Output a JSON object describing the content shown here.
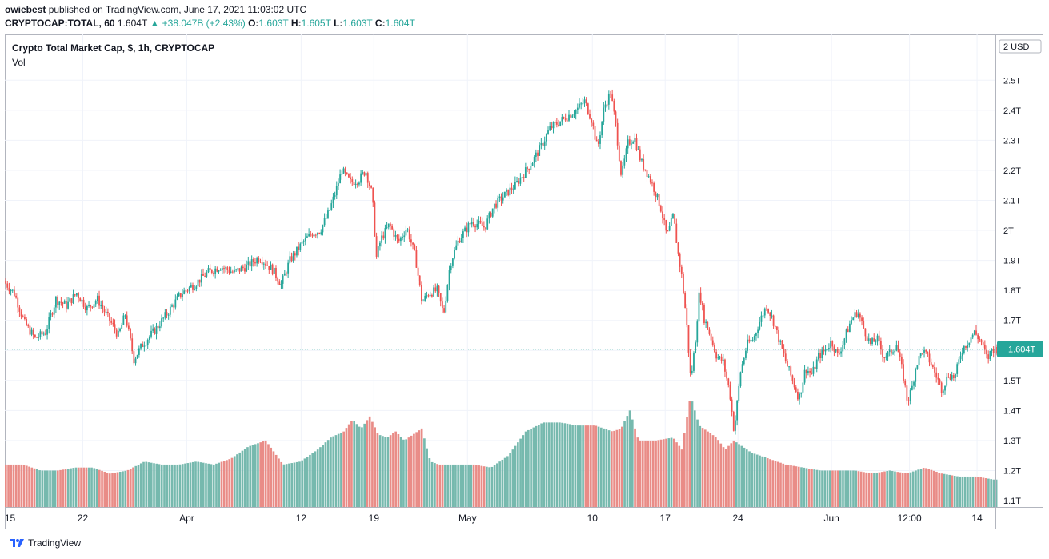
{
  "header": {
    "author": "owiebest",
    "published_text": "published on TradingView.com, June 17, 2021 11:03:02 UTC",
    "symbol": "CRYPTOCAP:TOTAL, 60",
    "last": "1.604T",
    "change": "▲ +38.047B (+2.43%)",
    "o_label": "O:",
    "o": "1.603T",
    "h_label": "H:",
    "h": "1.605T",
    "l_label": "L:",
    "l": "1.603T",
    "c_label": "C:",
    "c": "1.604T"
  },
  "legend": {
    "title": "Crypto Total Market Cap, $, 1h, CRYPTOCAP",
    "volume": "Vol"
  },
  "brand": {
    "name": "TradingView",
    "icon": "tradingview-logo-icon"
  },
  "colors": {
    "up": "#26a69a",
    "down": "#ef5350",
    "vol_up": "#76b9ae",
    "vol_down": "#e98c87",
    "grid": "#f0f3fa",
    "last_price_bg": "#26a69a"
  },
  "chart_data": {
    "type": "candlestick",
    "currency_label": "2 USD",
    "y_ticks": [
      "1.1T",
      "1.2T",
      "1.3T",
      "1.4T",
      "1.5T",
      "1.6T",
      "1.7T",
      "1.8T",
      "1.9T",
      "2T",
      "2.1T",
      "2.2T",
      "2.3T",
      "2.4T",
      "2.5T"
    ],
    "ylim": [
      1.07,
      2.62
    ],
    "x_ticks": [
      "15",
      "22",
      "Apr",
      "12",
      "19",
      "May",
      "10",
      "17",
      "24",
      "Jun",
      "12:00",
      "14"
    ],
    "x_tick_hours": [
      12,
      180,
      420,
      684,
      852,
      1068,
      1356,
      1524,
      1692,
      1908,
      2088,
      2244
    ],
    "last_price_label": "1.604T",
    "last_price": 1.604,
    "grid": true,
    "price_path": [
      [
        0,
        1.83
      ],
      [
        24,
        1.79
      ],
      [
        48,
        1.69
      ],
      [
        72,
        1.64
      ],
      [
        96,
        1.66
      ],
      [
        120,
        1.77
      ],
      [
        144,
        1.75
      ],
      [
        168,
        1.79
      ],
      [
        192,
        1.74
      ],
      [
        216,
        1.77
      ],
      [
        240,
        1.71
      ],
      [
        264,
        1.65
      ],
      [
        280,
        1.72
      ],
      [
        300,
        1.57
      ],
      [
        320,
        1.62
      ],
      [
        350,
        1.67
      ],
      [
        380,
        1.73
      ],
      [
        410,
        1.79
      ],
      [
        440,
        1.82
      ],
      [
        470,
        1.86
      ],
      [
        500,
        1.88
      ],
      [
        530,
        1.86
      ],
      [
        560,
        1.88
      ],
      [
        590,
        1.91
      ],
      [
        620,
        1.87
      ],
      [
        640,
        1.82
      ],
      [
        660,
        1.9
      ],
      [
        690,
        1.96
      ],
      [
        710,
        1.99
      ],
      [
        730,
        2.0
      ],
      [
        750,
        2.06
      ],
      [
        766,
        2.13
      ],
      [
        780,
        2.2
      ],
      [
        800,
        2.16
      ],
      [
        820,
        2.17
      ],
      [
        835,
        2.2
      ],
      [
        850,
        2.12
      ],
      [
        860,
        1.91
      ],
      [
        870,
        1.97
      ],
      [
        890,
        2.02
      ],
      [
        910,
        1.96
      ],
      [
        930,
        2.01
      ],
      [
        950,
        1.91
      ],
      [
        965,
        1.76
      ],
      [
        980,
        1.79
      ],
      [
        1000,
        1.8
      ],
      [
        1015,
        1.72
      ],
      [
        1030,
        1.89
      ],
      [
        1050,
        1.97
      ],
      [
        1080,
        2.03
      ],
      [
        1110,
        2.01
      ],
      [
        1130,
        2.08
      ],
      [
        1150,
        2.11
      ],
      [
        1180,
        2.15
      ],
      [
        1200,
        2.19
      ],
      [
        1220,
        2.23
      ],
      [
        1240,
        2.28
      ],
      [
        1260,
        2.34
      ],
      [
        1280,
        2.36
      ],
      [
        1300,
        2.38
      ],
      [
        1320,
        2.4
      ],
      [
        1340,
        2.43
      ],
      [
        1356,
        2.37
      ],
      [
        1370,
        2.27
      ],
      [
        1385,
        2.41
      ],
      [
        1400,
        2.46
      ],
      [
        1412,
        2.35
      ],
      [
        1425,
        2.18
      ],
      [
        1440,
        2.29
      ],
      [
        1455,
        2.31
      ],
      [
        1470,
        2.23
      ],
      [
        1485,
        2.19
      ],
      [
        1500,
        2.14
      ],
      [
        1515,
        2.08
      ],
      [
        1530,
        1.98
      ],
      [
        1545,
        2.05
      ],
      [
        1555,
        1.93
      ],
      [
        1565,
        1.84
      ],
      [
        1575,
        1.7
      ],
      [
        1585,
        1.5
      ],
      [
        1595,
        1.62
      ],
      [
        1605,
        1.8
      ],
      [
        1615,
        1.71
      ],
      [
        1630,
        1.65
      ],
      [
        1645,
        1.58
      ],
      [
        1660,
        1.56
      ],
      [
        1675,
        1.46
      ],
      [
        1685,
        1.33
      ],
      [
        1700,
        1.53
      ],
      [
        1715,
        1.62
      ],
      [
        1730,
        1.64
      ],
      [
        1745,
        1.7
      ],
      [
        1760,
        1.75
      ],
      [
        1775,
        1.7
      ],
      [
        1790,
        1.63
      ],
      [
        1805,
        1.56
      ],
      [
        1820,
        1.5
      ],
      [
        1835,
        1.44
      ],
      [
        1850,
        1.54
      ],
      [
        1865,
        1.52
      ],
      [
        1880,
        1.58
      ],
      [
        1895,
        1.6
      ],
      [
        1910,
        1.63
      ],
      [
        1925,
        1.58
      ],
      [
        1940,
        1.64
      ],
      [
        1955,
        1.7
      ],
      [
        1970,
        1.73
      ],
      [
        1985,
        1.67
      ],
      [
        2000,
        1.62
      ],
      [
        2015,
        1.64
      ],
      [
        2030,
        1.58
      ],
      [
        2045,
        1.59
      ],
      [
        2060,
        1.62
      ],
      [
        2075,
        1.52
      ],
      [
        2085,
        1.43
      ],
      [
        2095,
        1.47
      ],
      [
        2105,
        1.55
      ],
      [
        2120,
        1.6
      ],
      [
        2135,
        1.57
      ],
      [
        2150,
        1.52
      ],
      [
        2165,
        1.47
      ],
      [
        2180,
        1.52
      ],
      [
        2195,
        1.51
      ],
      [
        2210,
        1.6
      ],
      [
        2225,
        1.63
      ],
      [
        2240,
        1.66
      ],
      [
        2255,
        1.63
      ],
      [
        2270,
        1.57
      ],
      [
        2280,
        1.604
      ]
    ],
    "volume_path": [
      [
        0,
        1.22
      ],
      [
        40,
        1.22
      ],
      [
        80,
        1.2
      ],
      [
        120,
        1.2
      ],
      [
        160,
        1.21
      ],
      [
        200,
        1.21
      ],
      [
        240,
        1.19
      ],
      [
        280,
        1.2
      ],
      [
        320,
        1.23
      ],
      [
        360,
        1.22
      ],
      [
        400,
        1.22
      ],
      [
        440,
        1.23
      ],
      [
        480,
        1.22
      ],
      [
        520,
        1.24
      ],
      [
        560,
        1.28
      ],
      [
        600,
        1.3
      ],
      [
        640,
        1.22
      ],
      [
        680,
        1.23
      ],
      [
        720,
        1.27
      ],
      [
        750,
        1.31
      ],
      [
        780,
        1.33
      ],
      [
        800,
        1.37
      ],
      [
        820,
        1.34
      ],
      [
        840,
        1.38
      ],
      [
        860,
        1.32
      ],
      [
        880,
        1.31
      ],
      [
        900,
        1.33
      ],
      [
        920,
        1.3
      ],
      [
        940,
        1.32
      ],
      [
        960,
        1.34
      ],
      [
        980,
        1.23
      ],
      [
        1000,
        1.22
      ],
      [
        1040,
        1.22
      ],
      [
        1080,
        1.22
      ],
      [
        1120,
        1.21
      ],
      [
        1160,
        1.25
      ],
      [
        1200,
        1.33
      ],
      [
        1240,
        1.36
      ],
      [
        1280,
        1.36
      ],
      [
        1320,
        1.35
      ],
      [
        1360,
        1.35
      ],
      [
        1400,
        1.33
      ],
      [
        1420,
        1.34
      ],
      [
        1440,
        1.4
      ],
      [
        1460,
        1.3
      ],
      [
        1500,
        1.3
      ],
      [
        1540,
        1.31
      ],
      [
        1560,
        1.27
      ],
      [
        1580,
        1.45
      ],
      [
        1600,
        1.35
      ],
      [
        1620,
        1.33
      ],
      [
        1640,
        1.31
      ],
      [
        1660,
        1.27
      ],
      [
        1680,
        1.3
      ],
      [
        1700,
        1.28
      ],
      [
        1720,
        1.26
      ],
      [
        1760,
        1.24
      ],
      [
        1800,
        1.22
      ],
      [
        1840,
        1.21
      ],
      [
        1880,
        1.2
      ],
      [
        1920,
        1.2
      ],
      [
        1960,
        1.2
      ],
      [
        2000,
        1.19
      ],
      [
        2040,
        1.2
      ],
      [
        2080,
        1.19
      ],
      [
        2120,
        1.21
      ],
      [
        2160,
        1.19
      ],
      [
        2200,
        1.18
      ],
      [
        2240,
        1.18
      ],
      [
        2280,
        1.17
      ]
    ]
  }
}
